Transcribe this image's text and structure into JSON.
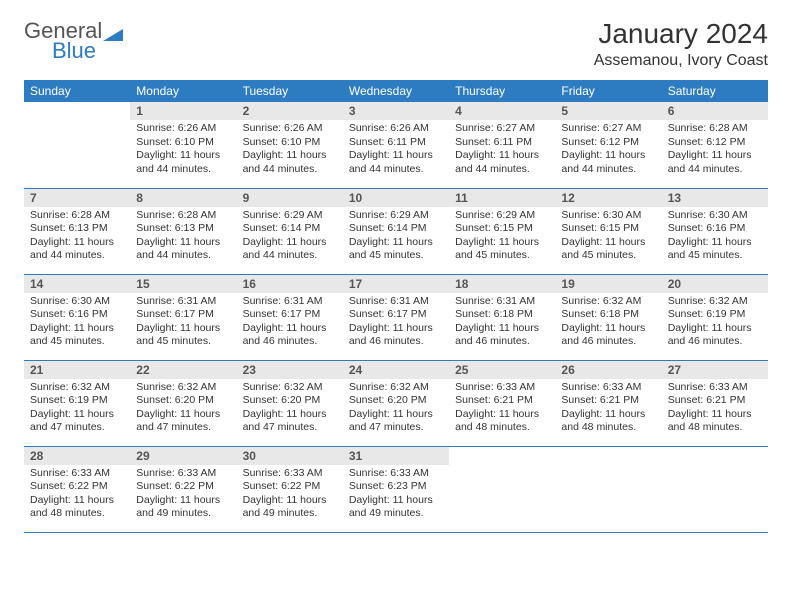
{
  "logo": {
    "part1": "General",
    "part2": "Blue"
  },
  "title": "January 2024",
  "subtitle": "Assemanou, Ivory Coast",
  "colors": {
    "header_bg": "#2d7cc1",
    "header_text": "#ffffff",
    "daynum_bg": "#e8e8e8",
    "border": "#2d7cc1",
    "logo_blue": "#2d7cc1",
    "logo_gray": "#555555"
  },
  "weekdays": [
    "Sunday",
    "Monday",
    "Tuesday",
    "Wednesday",
    "Thursday",
    "Friday",
    "Saturday"
  ],
  "weeks": [
    [
      {
        "n": "",
        "sr": "",
        "ss": "",
        "dl": ""
      },
      {
        "n": "1",
        "sr": "Sunrise: 6:26 AM",
        "ss": "Sunset: 6:10 PM",
        "dl": "Daylight: 11 hours and 44 minutes."
      },
      {
        "n": "2",
        "sr": "Sunrise: 6:26 AM",
        "ss": "Sunset: 6:10 PM",
        "dl": "Daylight: 11 hours and 44 minutes."
      },
      {
        "n": "3",
        "sr": "Sunrise: 6:26 AM",
        "ss": "Sunset: 6:11 PM",
        "dl": "Daylight: 11 hours and 44 minutes."
      },
      {
        "n": "4",
        "sr": "Sunrise: 6:27 AM",
        "ss": "Sunset: 6:11 PM",
        "dl": "Daylight: 11 hours and 44 minutes."
      },
      {
        "n": "5",
        "sr": "Sunrise: 6:27 AM",
        "ss": "Sunset: 6:12 PM",
        "dl": "Daylight: 11 hours and 44 minutes."
      },
      {
        "n": "6",
        "sr": "Sunrise: 6:28 AM",
        "ss": "Sunset: 6:12 PM",
        "dl": "Daylight: 11 hours and 44 minutes."
      }
    ],
    [
      {
        "n": "7",
        "sr": "Sunrise: 6:28 AM",
        "ss": "Sunset: 6:13 PM",
        "dl": "Daylight: 11 hours and 44 minutes."
      },
      {
        "n": "8",
        "sr": "Sunrise: 6:28 AM",
        "ss": "Sunset: 6:13 PM",
        "dl": "Daylight: 11 hours and 44 minutes."
      },
      {
        "n": "9",
        "sr": "Sunrise: 6:29 AM",
        "ss": "Sunset: 6:14 PM",
        "dl": "Daylight: 11 hours and 44 minutes."
      },
      {
        "n": "10",
        "sr": "Sunrise: 6:29 AM",
        "ss": "Sunset: 6:14 PM",
        "dl": "Daylight: 11 hours and 45 minutes."
      },
      {
        "n": "11",
        "sr": "Sunrise: 6:29 AM",
        "ss": "Sunset: 6:15 PM",
        "dl": "Daylight: 11 hours and 45 minutes."
      },
      {
        "n": "12",
        "sr": "Sunrise: 6:30 AM",
        "ss": "Sunset: 6:15 PM",
        "dl": "Daylight: 11 hours and 45 minutes."
      },
      {
        "n": "13",
        "sr": "Sunrise: 6:30 AM",
        "ss": "Sunset: 6:16 PM",
        "dl": "Daylight: 11 hours and 45 minutes."
      }
    ],
    [
      {
        "n": "14",
        "sr": "Sunrise: 6:30 AM",
        "ss": "Sunset: 6:16 PM",
        "dl": "Daylight: 11 hours and 45 minutes."
      },
      {
        "n": "15",
        "sr": "Sunrise: 6:31 AM",
        "ss": "Sunset: 6:17 PM",
        "dl": "Daylight: 11 hours and 45 minutes."
      },
      {
        "n": "16",
        "sr": "Sunrise: 6:31 AM",
        "ss": "Sunset: 6:17 PM",
        "dl": "Daylight: 11 hours and 46 minutes."
      },
      {
        "n": "17",
        "sr": "Sunrise: 6:31 AM",
        "ss": "Sunset: 6:17 PM",
        "dl": "Daylight: 11 hours and 46 minutes."
      },
      {
        "n": "18",
        "sr": "Sunrise: 6:31 AM",
        "ss": "Sunset: 6:18 PM",
        "dl": "Daylight: 11 hours and 46 minutes."
      },
      {
        "n": "19",
        "sr": "Sunrise: 6:32 AM",
        "ss": "Sunset: 6:18 PM",
        "dl": "Daylight: 11 hours and 46 minutes."
      },
      {
        "n": "20",
        "sr": "Sunrise: 6:32 AM",
        "ss": "Sunset: 6:19 PM",
        "dl": "Daylight: 11 hours and 46 minutes."
      }
    ],
    [
      {
        "n": "21",
        "sr": "Sunrise: 6:32 AM",
        "ss": "Sunset: 6:19 PM",
        "dl": "Daylight: 11 hours and 47 minutes."
      },
      {
        "n": "22",
        "sr": "Sunrise: 6:32 AM",
        "ss": "Sunset: 6:20 PM",
        "dl": "Daylight: 11 hours and 47 minutes."
      },
      {
        "n": "23",
        "sr": "Sunrise: 6:32 AM",
        "ss": "Sunset: 6:20 PM",
        "dl": "Daylight: 11 hours and 47 minutes."
      },
      {
        "n": "24",
        "sr": "Sunrise: 6:32 AM",
        "ss": "Sunset: 6:20 PM",
        "dl": "Daylight: 11 hours and 47 minutes."
      },
      {
        "n": "25",
        "sr": "Sunrise: 6:33 AM",
        "ss": "Sunset: 6:21 PM",
        "dl": "Daylight: 11 hours and 48 minutes."
      },
      {
        "n": "26",
        "sr": "Sunrise: 6:33 AM",
        "ss": "Sunset: 6:21 PM",
        "dl": "Daylight: 11 hours and 48 minutes."
      },
      {
        "n": "27",
        "sr": "Sunrise: 6:33 AM",
        "ss": "Sunset: 6:21 PM",
        "dl": "Daylight: 11 hours and 48 minutes."
      }
    ],
    [
      {
        "n": "28",
        "sr": "Sunrise: 6:33 AM",
        "ss": "Sunset: 6:22 PM",
        "dl": "Daylight: 11 hours and 48 minutes."
      },
      {
        "n": "29",
        "sr": "Sunrise: 6:33 AM",
        "ss": "Sunset: 6:22 PM",
        "dl": "Daylight: 11 hours and 49 minutes."
      },
      {
        "n": "30",
        "sr": "Sunrise: 6:33 AM",
        "ss": "Sunset: 6:22 PM",
        "dl": "Daylight: 11 hours and 49 minutes."
      },
      {
        "n": "31",
        "sr": "Sunrise: 6:33 AM",
        "ss": "Sunset: 6:23 PM",
        "dl": "Daylight: 11 hours and 49 minutes."
      },
      {
        "n": "",
        "sr": "",
        "ss": "",
        "dl": ""
      },
      {
        "n": "",
        "sr": "",
        "ss": "",
        "dl": ""
      },
      {
        "n": "",
        "sr": "",
        "ss": "",
        "dl": ""
      }
    ]
  ]
}
